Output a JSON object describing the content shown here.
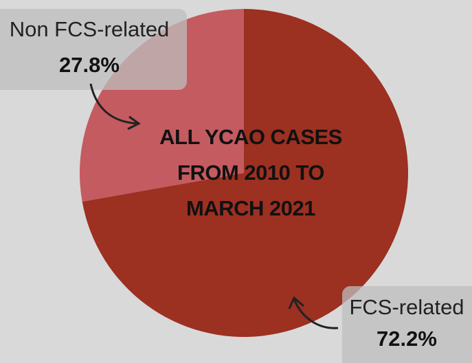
{
  "chart_data": {
    "type": "pie",
    "title": "ALL YCAO CASES FROM 2010 TO MARCH 2021",
    "categories": [
      "FCS-related",
      "Non FCS-related"
    ],
    "values": [
      72.2,
      27.8
    ],
    "value_labels": [
      "72.2%",
      "27.8%"
    ],
    "colors": [
      "#9c3021",
      "#c45b60"
    ]
  }
}
